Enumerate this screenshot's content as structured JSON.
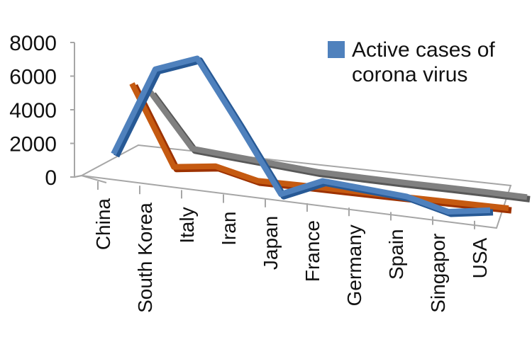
{
  "chart_data": {
    "type": "line",
    "title": "",
    "xlabel": "",
    "ylabel": "",
    "ylim": [
      0,
      8000
    ],
    "y_ticks": [
      "0",
      "2000",
      "4000",
      "6000",
      "8000"
    ],
    "categories": [
      "China",
      "South Korea",
      "Italy",
      "Iran",
      "Japan",
      "France",
      "Germany",
      "Spain",
      "Singapor",
      "USA"
    ],
    "series": [
      {
        "name": "Active cases of corona virus",
        "color": "#4f81bd",
        "values": [
          1500,
          6800,
          7700,
          4000,
          150,
          1200,
          1000,
          800,
          150,
          500
        ]
      },
      {
        "name": "",
        "color": "#c55a11",
        "values": [
          5100,
          400,
          700,
          100,
          100,
          80,
          60,
          50,
          40,
          30
        ]
      },
      {
        "name": "",
        "color": "#808080",
        "values": [
          4000,
          900,
          700,
          500,
          300,
          250,
          200,
          180,
          150,
          100
        ]
      }
    ],
    "legend": {
      "position": "top-right",
      "line1": "Active cases of",
      "line2": "corona virus"
    },
    "grid": false
  }
}
